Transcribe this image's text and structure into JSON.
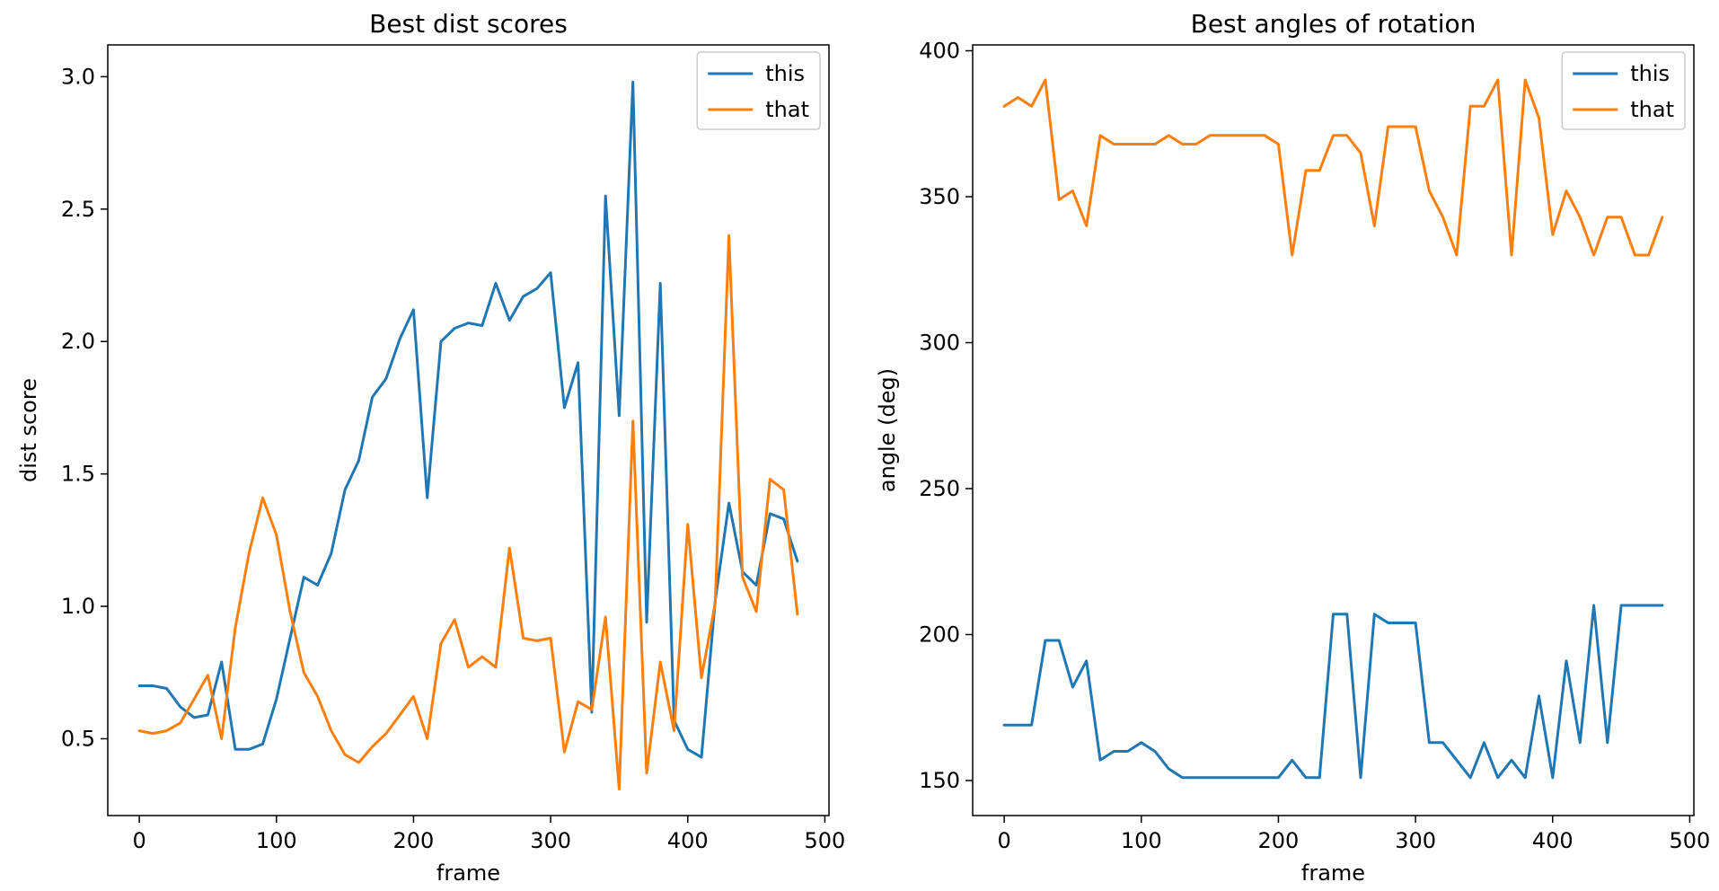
{
  "chart_data": [
    {
      "type": "line",
      "title": "Best dist scores",
      "xlabel": "frame",
      "ylabel": "dist score",
      "xlim": [
        -23,
        503
      ],
      "ylim": [
        0.21,
        3.12
      ],
      "xticks": [
        0,
        100,
        200,
        300,
        400,
        500
      ],
      "xtick_labels": [
        "0",
        "100",
        "200",
        "300",
        "400",
        "500"
      ],
      "yticks": [
        0.5,
        1.0,
        1.5,
        2.0,
        2.5,
        3.0
      ],
      "ytick_labels": [
        "0.5",
        "1.0",
        "1.5",
        "2.0",
        "2.5",
        "3.0"
      ],
      "grid": false,
      "legend": "top-right",
      "x": [
        0,
        10,
        20,
        30,
        40,
        50,
        60,
        70,
        80,
        90,
        100,
        110,
        120,
        130,
        140,
        150,
        160,
        170,
        180,
        190,
        200,
        210,
        220,
        230,
        240,
        250,
        260,
        270,
        280,
        290,
        300,
        310,
        320,
        330,
        340,
        350,
        360,
        370,
        380,
        390,
        400,
        410,
        420,
        430,
        440,
        450,
        460,
        470,
        480
      ],
      "series": [
        {
          "name": "this",
          "color": "#1f77b4",
          "values": [
            0.7,
            0.7,
            0.69,
            0.62,
            0.58,
            0.59,
            0.79,
            0.46,
            0.46,
            0.48,
            0.65,
            0.88,
            1.11,
            1.08,
            1.2,
            1.44,
            1.55,
            1.79,
            1.86,
            2.01,
            2.12,
            1.41,
            2.0,
            2.05,
            2.07,
            2.06,
            2.22,
            2.08,
            2.17,
            2.2,
            2.26,
            1.75,
            1.92,
            0.6,
            2.55,
            1.72,
            2.98,
            0.94,
            2.22,
            0.57,
            0.46,
            0.43,
            1.02,
            1.39,
            1.13,
            1.08,
            1.35,
            1.33,
            1.17
          ]
        },
        {
          "name": "that",
          "color": "#ff7f0e",
          "values": [
            0.53,
            0.52,
            0.53,
            0.56,
            0.65,
            0.74,
            0.5,
            0.92,
            1.2,
            1.41,
            1.27,
            0.98,
            0.75,
            0.66,
            0.53,
            0.44,
            0.41,
            0.47,
            0.52,
            0.59,
            0.66,
            0.5,
            0.86,
            0.95,
            0.77,
            0.81,
            0.77,
            1.22,
            0.88,
            0.87,
            0.88,
            0.45,
            0.64,
            0.61,
            0.96,
            0.31,
            1.7,
            0.37,
            0.79,
            0.53,
            1.31,
            0.73,
            1.01,
            2.4,
            1.11,
            0.98,
            1.48,
            1.44,
            0.97
          ]
        }
      ]
    },
    {
      "type": "line",
      "title": "Best angles of rotation",
      "xlabel": "frame",
      "ylabel": "angle (deg)",
      "xlim": [
        -23,
        503
      ],
      "ylim": [
        138,
        402
      ],
      "xticks": [
        0,
        100,
        200,
        300,
        400,
        500
      ],
      "xtick_labels": [
        "0",
        "100",
        "200",
        "300",
        "400",
        "500"
      ],
      "yticks": [
        150,
        200,
        250,
        300,
        350,
        400
      ],
      "ytick_labels": [
        "150",
        "200",
        "250",
        "300",
        "350",
        "400"
      ],
      "grid": false,
      "legend": "top-right",
      "x": [
        0,
        10,
        20,
        30,
        40,
        50,
        60,
        70,
        80,
        90,
        100,
        110,
        120,
        130,
        140,
        150,
        160,
        170,
        180,
        190,
        200,
        210,
        220,
        230,
        240,
        250,
        260,
        270,
        280,
        290,
        300,
        310,
        320,
        330,
        340,
        350,
        360,
        370,
        380,
        390,
        400,
        410,
        420,
        430,
        440,
        450,
        460,
        470,
        480
      ],
      "series": [
        {
          "name": "this",
          "color": "#1f77b4",
          "values": [
            169,
            169,
            169,
            198,
            198,
            182,
            191,
            157,
            160,
            160,
            163,
            160,
            154,
            151,
            151,
            151,
            151,
            151,
            151,
            151,
            151,
            157,
            151,
            151,
            207,
            207,
            151,
            207,
            204,
            204,
            204,
            163,
            163,
            157,
            151,
            163,
            151,
            157,
            151,
            179,
            151,
            191,
            163,
            210,
            163,
            210,
            210,
            210,
            210
          ]
        },
        {
          "name": "that",
          "color": "#ff7f0e",
          "values": [
            381,
            384,
            381,
            390,
            349,
            352,
            340,
            371,
            368,
            368,
            368,
            368,
            371,
            368,
            368,
            371,
            371,
            371,
            371,
            371,
            368,
            330,
            359,
            359,
            371,
            371,
            365,
            340,
            374,
            374,
            374,
            352,
            343,
            330,
            381,
            381,
            390,
            330,
            390,
            377,
            337,
            352,
            343,
            330,
            343,
            343,
            330,
            330,
            343
          ]
        }
      ]
    }
  ]
}
